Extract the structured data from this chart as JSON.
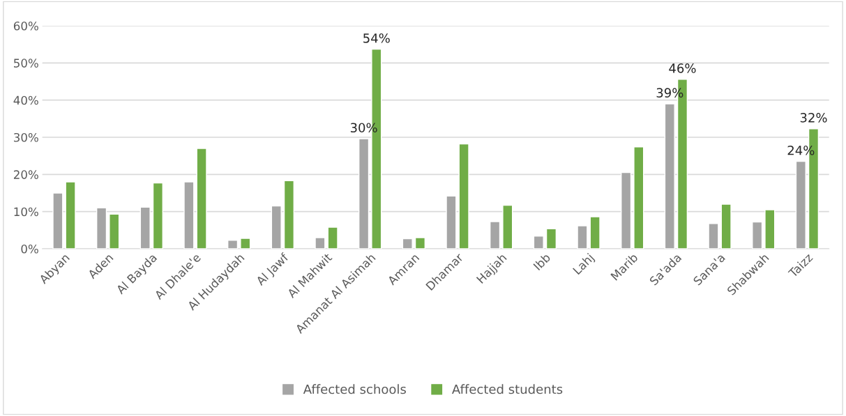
{
  "chart_data": {
    "type": "bar",
    "categories": [
      "Abyan",
      "Aden",
      "Al Bayda",
      "Al Dhale'e",
      "Al Hudaydah",
      "Al Jawf",
      "Al Mahwit",
      "Amanat Al Asimah",
      "Amran",
      "Dhamar",
      "Hajjah",
      "Ibb",
      "Lahj",
      "Marib",
      "Sa'ada",
      "Sana'a",
      "Shabwah",
      "Taizz"
    ],
    "series": [
      {
        "name": "Affected schools",
        "color": "#a5a5a5",
        "values": [
          15.0,
          11.0,
          11.2,
          18.0,
          2.3,
          11.5,
          3.0,
          29.6,
          2.7,
          14.2,
          7.3,
          3.4,
          6.2,
          20.5,
          39.0,
          6.8,
          7.2,
          23.5
        ],
        "value_labels": [
          null,
          null,
          null,
          null,
          null,
          null,
          null,
          "30%",
          null,
          null,
          null,
          null,
          null,
          null,
          "39%",
          null,
          null,
          "24%"
        ]
      },
      {
        "name": "Affected students",
        "color": "#70ad47",
        "values": [
          18.0,
          9.3,
          17.7,
          27.0,
          2.8,
          18.3,
          5.8,
          53.7,
          3.0,
          28.2,
          11.7,
          5.4,
          8.6,
          27.4,
          45.6,
          12.0,
          10.5,
          32.3
        ],
        "value_labels": [
          null,
          null,
          null,
          null,
          null,
          null,
          null,
          "54%",
          null,
          null,
          null,
          null,
          null,
          null,
          "46%",
          null,
          null,
          "32%"
        ]
      }
    ],
    "ylim": [
      0,
      60
    ],
    "yticks": [
      {
        "value": 0,
        "label": "0%"
      },
      {
        "value": 10,
        "label": "10%"
      },
      {
        "value": 20,
        "label": "20%"
      },
      {
        "value": 30,
        "label": "30%"
      },
      {
        "value": 40,
        "label": "40%"
      },
      {
        "value": 50,
        "label": "50%"
      },
      {
        "value": 60,
        "label": "60%"
      }
    ],
    "grid": "y",
    "legend": "bottom"
  }
}
